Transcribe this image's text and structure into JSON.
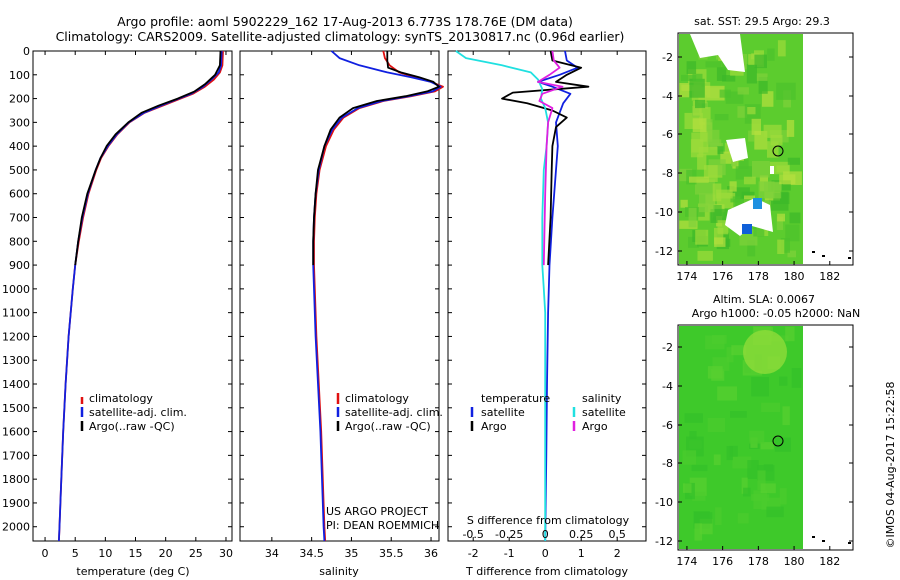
{
  "header": {
    "title_line1": "Argo profile: aoml 5902229_162 17-Aug-2013 6.773S 178.76E (DM data)",
    "title_line2": "Climatology: CARS2009. Satellite-adjusted climatology: synTS_20130817.nc (0.96d earlier)"
  },
  "colors": {
    "climatology": "#e01010",
    "satellite": "#1020e0",
    "argo": "#000000",
    "sal_satellite": "#20e0e0",
    "sal_argo": "#e020e0"
  },
  "chart_data": [
    {
      "type": "line",
      "id": "temperature",
      "xlabel": "temperature (deg C)",
      "xlim": [
        -2,
        31
      ],
      "xticks": [
        0,
        5,
        10,
        15,
        20,
        25,
        30
      ],
      "xtick_labels": [
        "0",
        "5",
        "10",
        "15",
        "20",
        "25",
        "30"
      ],
      "ylim": [
        0,
        2060
      ],
      "yticks": [
        0,
        100,
        200,
        300,
        400,
        500,
        600,
        700,
        800,
        900,
        1000,
        1100,
        1200,
        1300,
        1400,
        1500,
        1600,
        1700,
        1800,
        1900,
        2000
      ],
      "ytick_labels": [
        "0",
        "100",
        "200",
        "300",
        "400",
        "500",
        "600",
        "700",
        "800",
        "900",
        "1000",
        "1100",
        "1200",
        "1300",
        "1400",
        "1500",
        "1600",
        "1700",
        "1800",
        "1900",
        "2000"
      ],
      "legend": [
        "climatology",
        "satellite-adj. clim.",
        "Argo(..raw -QC)"
      ],
      "series": [
        {
          "name": "climatology",
          "color_key": "climatology",
          "depth": [
            0,
            60,
            90,
            120,
            150,
            180,
            200,
            230,
            260,
            300,
            350,
            400,
            450,
            500,
            600,
            700,
            800,
            900,
            1000,
            1200,
            1400,
            1600,
            1800,
            2000,
            2060
          ],
          "values": [
            29.5,
            29.4,
            29.0,
            28.0,
            26.5,
            24.5,
            22.5,
            19.5,
            16.5,
            14.0,
            12.0,
            10.5,
            9.3,
            8.5,
            7.2,
            6.3,
            5.6,
            5.0,
            4.6,
            3.9,
            3.4,
            3.0,
            2.7,
            2.4,
            2.3
          ]
        },
        {
          "name": "satellite-adj. clim.",
          "color_key": "satellite",
          "depth": [
            0,
            60,
            90,
            120,
            150,
            180,
            200,
            230,
            260,
            300,
            350,
            400,
            450,
            500,
            600,
            700,
            800,
            900,
            1000,
            1200,
            1400,
            1600,
            1800,
            2000,
            2060
          ],
          "values": [
            29.3,
            29.2,
            28.8,
            27.6,
            26.2,
            24.2,
            22.2,
            19.2,
            16.4,
            13.9,
            11.9,
            10.4,
            9.2,
            8.4,
            7.1,
            6.2,
            5.5,
            5.0,
            4.6,
            3.9,
            3.4,
            3.0,
            2.7,
            2.4,
            2.3
          ]
        },
        {
          "name": "Argo(..raw -QC)",
          "color_key": "argo",
          "depth": [
            0,
            60,
            100,
            140,
            170,
            200,
            230,
            260,
            300,
            350,
            400,
            450,
            500,
            600,
            700,
            800,
            900
          ],
          "values": [
            29.1,
            29.0,
            28.2,
            26.5,
            24.8,
            22.0,
            18.8,
            16.0,
            13.8,
            11.7,
            10.2,
            9.2,
            8.4,
            7.0,
            6.1,
            5.5,
            5.0
          ]
        }
      ]
    },
    {
      "type": "line",
      "id": "salinity",
      "xlabel": "salinity",
      "xlim": [
        33.6,
        36.1
      ],
      "xticks": [
        34,
        34.5,
        35,
        35.5,
        36
      ],
      "xtick_labels": [
        "34",
        "34.5",
        "35",
        "35.5",
        "36"
      ],
      "ylim": [
        0,
        2060
      ],
      "legend": [
        "climatology",
        "satellite-adj. clim.",
        "Argo(..raw -QC)"
      ],
      "annotation": [
        "US ARGO PROJECT",
        "PI: DEAN ROEMMICH"
      ],
      "series": [
        {
          "name": "climatology",
          "color_key": "climatology",
          "depth": [
            0,
            30,
            60,
            90,
            110,
            130,
            150,
            170,
            190,
            210,
            240,
            280,
            330,
            400,
            500,
            600,
            700,
            800,
            900,
            1000,
            1200,
            1400,
            1600,
            1800,
            2000,
            2060
          ],
          "values": [
            35.4,
            35.42,
            35.48,
            35.6,
            35.8,
            36.0,
            36.15,
            36.05,
            35.75,
            35.4,
            35.1,
            34.9,
            34.78,
            34.68,
            34.6,
            34.56,
            34.54,
            34.53,
            34.53,
            34.54,
            34.56,
            34.59,
            34.62,
            34.64,
            34.66,
            34.67
          ]
        },
        {
          "name": "satellite-adj. clim.",
          "color_key": "satellite",
          "depth": [
            0,
            30,
            60,
            90,
            110,
            130,
            150,
            170,
            190,
            210,
            240,
            280,
            330,
            400,
            500,
            600,
            700,
            800,
            900,
            1000,
            1200,
            1400,
            1600,
            1800,
            2000,
            2060
          ],
          "values": [
            34.75,
            34.85,
            35.1,
            35.45,
            35.75,
            36.0,
            36.12,
            36.02,
            35.72,
            35.38,
            35.08,
            34.88,
            34.76,
            34.66,
            34.59,
            34.55,
            34.53,
            34.52,
            34.52,
            34.53,
            34.55,
            34.58,
            34.61,
            34.63,
            34.65,
            34.66
          ]
        },
        {
          "name": "Argo(..raw -QC)",
          "color_key": "argo",
          "depth": [
            0,
            40,
            70,
            90,
            110,
            130,
            150,
            170,
            190,
            210,
            240,
            280,
            330,
            400,
            500,
            600,
            700,
            800,
            900
          ],
          "values": [
            35.45,
            35.45,
            35.46,
            35.62,
            35.85,
            36.03,
            36.1,
            35.95,
            35.68,
            35.32,
            35.02,
            34.85,
            34.74,
            34.66,
            34.58,
            34.55,
            34.53,
            34.52,
            34.52
          ]
        }
      ]
    },
    {
      "type": "line",
      "id": "differences",
      "xlabel": "T difference from climatology",
      "xlabel_top": "S difference from climatology",
      "xlim": [
        -2.7,
        2.8
      ],
      "xticks": [
        -2,
        -1,
        0,
        1,
        2
      ],
      "xtick_labels": [
        "-2",
        "-1",
        "0",
        "1",
        "2"
      ],
      "sticks_labels": [
        "-0.5",
        "-0.25",
        "0",
        "0.25",
        "0.5"
      ],
      "ylim": [
        0,
        2060
      ],
      "legend_temperature": [
        "temperature",
        "satellite",
        "Argo"
      ],
      "legend_salinity": [
        "salinity",
        "satellite",
        "Argo"
      ],
      "series": [
        {
          "name": "T satellite",
          "color_key": "satellite",
          "depth": [
            0,
            40,
            70,
            100,
            130,
            150,
            180,
            220,
            260,
            300,
            400,
            500,
            700,
            900,
            1100,
            1400,
            1700,
            2060
          ],
          "values": [
            0.55,
            0.6,
            0.9,
            0.4,
            -0.2,
            0.2,
            0.7,
            0.5,
            0.4,
            0.3,
            0.35,
            0.3,
            0.2,
            0.12,
            0.08,
            0.05,
            0.03,
            0.0
          ]
        },
        {
          "name": "T Argo",
          "color_key": "argo",
          "depth": [
            0,
            40,
            70,
            100,
            130,
            150,
            175,
            200,
            220,
            250,
            280,
            320,
            400,
            500,
            700,
            900
          ],
          "values": [
            0.15,
            0.2,
            1.0,
            0.6,
            0.3,
            1.2,
            -0.9,
            -1.2,
            -0.5,
            0.2,
            0.6,
            0.3,
            0.2,
            0.18,
            0.15,
            0.08
          ]
        },
        {
          "name": "S satellite",
          "color_key": "sal_satellite",
          "depth": [
            0,
            30,
            60,
            90,
            120,
            160,
            200,
            240,
            300,
            400,
            500,
            700,
            900,
            1000,
            1100,
            1200,
            1400,
            1600,
            1800,
            2060
          ],
          "values": [
            -0.62,
            -0.55,
            -0.3,
            -0.1,
            -0.05,
            -0.02,
            -0.03,
            0.0,
            0.02,
            0.01,
            -0.01,
            -0.02,
            -0.02,
            -0.01,
            0.0,
            0.0,
            0.0,
            0.0,
            0.0,
            0.0
          ]
        },
        {
          "name": "S Argo",
          "color_key": "sal_argo",
          "depth": [
            0,
            40,
            70,
            100,
            130,
            150,
            180,
            210,
            240,
            300,
            400,
            600,
            900
          ],
          "values": [
            0.05,
            0.06,
            0.1,
            0.03,
            -0.05,
            0.12,
            -0.02,
            -0.04,
            0.05,
            0.02,
            0.01,
            0.0,
            -0.01
          ]
        }
      ]
    }
  ],
  "maps": {
    "sst": {
      "title": "sat. SST: 29.5 Argo: 29.3",
      "xticks": [
        "174",
        "176",
        "178",
        "180",
        "182"
      ],
      "yticks": [
        "-2",
        "-4",
        "-6",
        "-8",
        "-10",
        "-12"
      ]
    },
    "sla": {
      "title_line1": "Altim. SLA: 0.0067",
      "title_line2": "Argo h1000: -0.05 h2000: NaN",
      "xticks": [
        "174",
        "176",
        "178",
        "180",
        "182"
      ],
      "yticks": [
        "-2",
        "-4",
        "-6",
        "-8",
        "-10",
        "-12"
      ]
    }
  },
  "footer": {
    "credit": "©IMOS 04-Aug-2017 15:22:58"
  }
}
